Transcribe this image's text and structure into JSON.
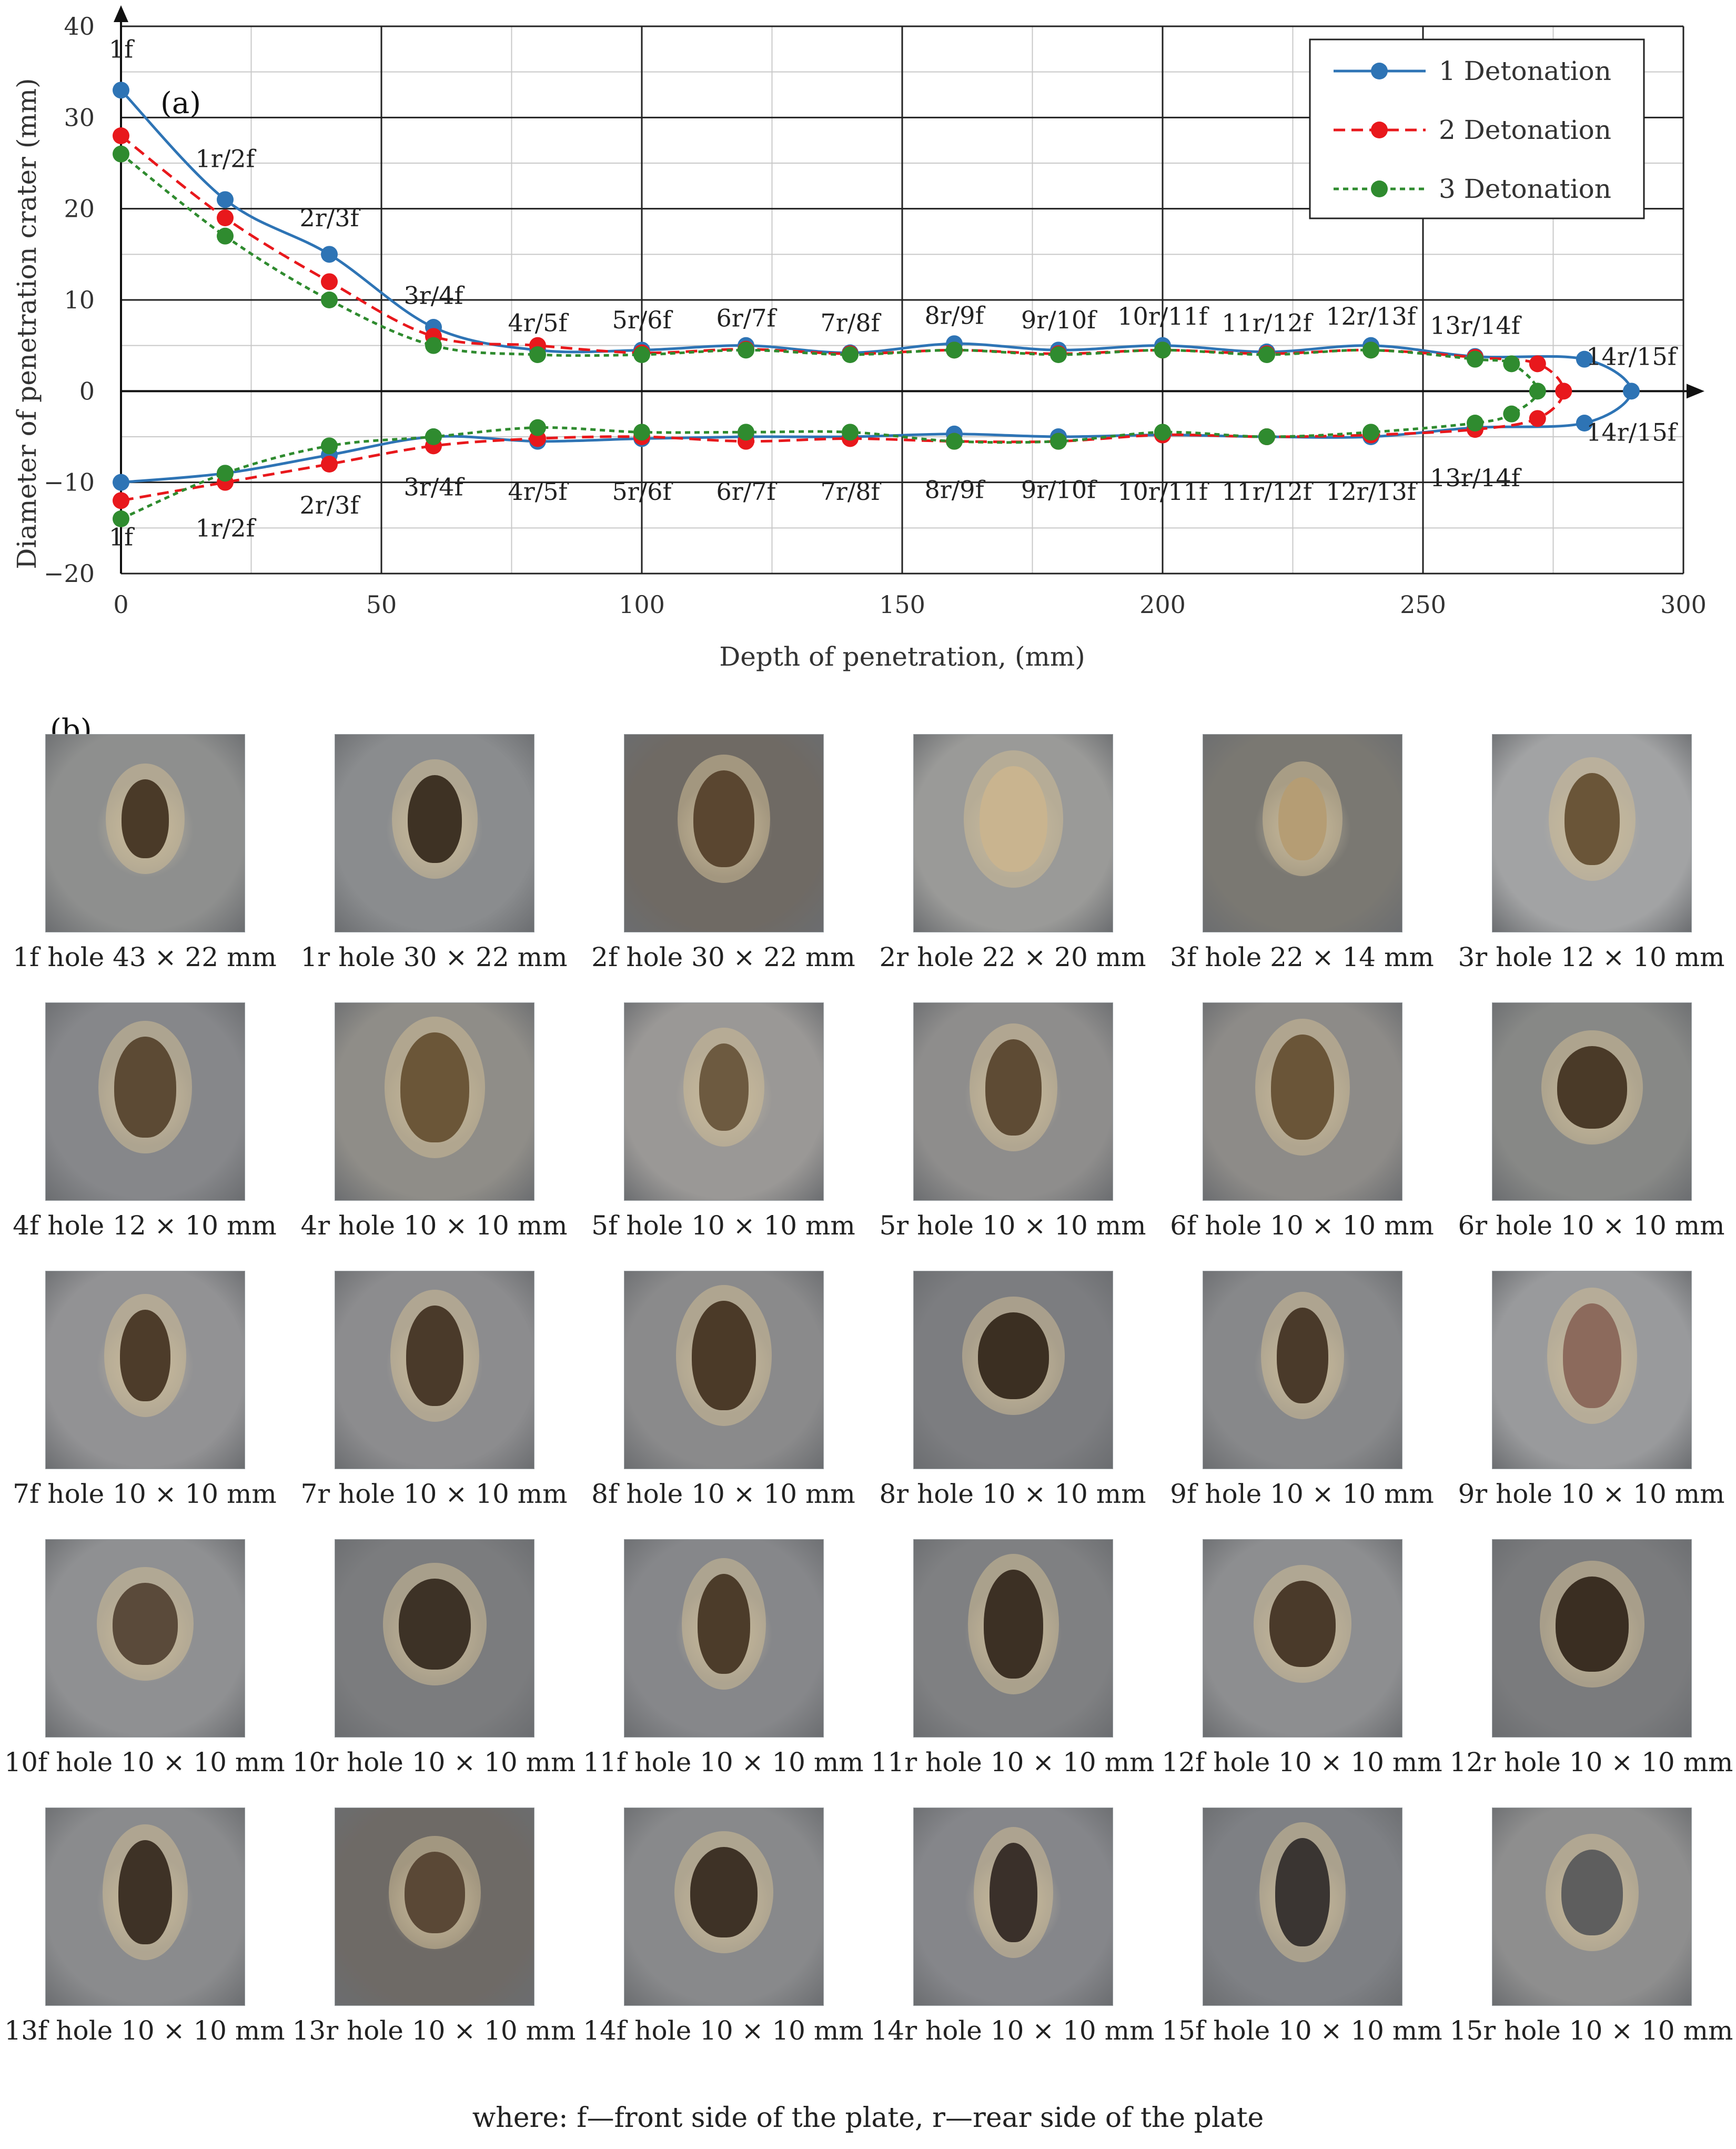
{
  "chart_data": {
    "type": "line",
    "panel_label": "(a)",
    "title": "",
    "xlabel": "Depth of penetration, (mm)",
    "ylabel": "Diameter of penetration crater (mm)",
    "xlim": [
      0,
      300
    ],
    "ylim": [
      -20,
      40
    ],
    "x_ticks": [
      0,
      50,
      100,
      150,
      200,
      250,
      300
    ],
    "y_ticks": [
      40,
      30,
      20,
      10,
      0,
      -10,
      -20
    ],
    "y_tick_labels": [
      "40",
      "30",
      "20",
      "10",
      "0",
      "−10",
      "−20"
    ],
    "grid": true,
    "legend_position": "top-right",
    "series": [
      {
        "name": "1 Detonation",
        "color": "#2E74B5",
        "line_style": "solid",
        "upper": [
          [
            0,
            33
          ],
          [
            20,
            21
          ],
          [
            40,
            15
          ],
          [
            60,
            7
          ],
          [
            80,
            4.5
          ],
          [
            100,
            4.5
          ],
          [
            120,
            5
          ],
          [
            140,
            4.2
          ],
          [
            160,
            5.2
          ],
          [
            180,
            4.5
          ],
          [
            200,
            5
          ],
          [
            220,
            4.3
          ],
          [
            240,
            5
          ],
          [
            260,
            3.8
          ],
          [
            281,
            3.5
          ]
        ],
        "lower": [
          [
            0,
            -10
          ],
          [
            20,
            -9
          ],
          [
            40,
            -7
          ],
          [
            60,
            -5
          ],
          [
            80,
            -5.5
          ],
          [
            100,
            -5.2
          ],
          [
            120,
            -5
          ],
          [
            140,
            -5
          ],
          [
            160,
            -4.7
          ],
          [
            180,
            -5
          ],
          [
            200,
            -4.8
          ],
          [
            220,
            -5
          ],
          [
            240,
            -5
          ],
          [
            260,
            -4
          ],
          [
            281,
            -3.5
          ]
        ],
        "tip": [
          290,
          0
        ]
      },
      {
        "name": "2 Detonation",
        "color": "#E8181C",
        "line_style": "dashed",
        "upper": [
          [
            0,
            28
          ],
          [
            20,
            19
          ],
          [
            40,
            12
          ],
          [
            60,
            6
          ],
          [
            80,
            5
          ],
          [
            100,
            4.2
          ],
          [
            120,
            4.6
          ],
          [
            140,
            4.1
          ],
          [
            160,
            4.5
          ],
          [
            180,
            4.1
          ],
          [
            200,
            4.5
          ],
          [
            220,
            4.1
          ],
          [
            240,
            4.5
          ],
          [
            260,
            3.7
          ],
          [
            272,
            3
          ]
        ],
        "lower": [
          [
            0,
            -12
          ],
          [
            20,
            -10
          ],
          [
            40,
            -8
          ],
          [
            60,
            -6
          ],
          [
            80,
            -5.2
          ],
          [
            100,
            -5
          ],
          [
            120,
            -5.5
          ],
          [
            140,
            -5.2
          ],
          [
            160,
            -5.5
          ],
          [
            180,
            -5.5
          ],
          [
            200,
            -4.8
          ],
          [
            220,
            -5
          ],
          [
            240,
            -4.8
          ],
          [
            260,
            -4.2
          ],
          [
            272,
            -3
          ]
        ],
        "tip": [
          277,
          0
        ]
      },
      {
        "name": "3 Detonation",
        "color": "#2F8B2F",
        "line_style": "dotted",
        "upper": [
          [
            0,
            26
          ],
          [
            20,
            17
          ],
          [
            40,
            10
          ],
          [
            60,
            5
          ],
          [
            80,
            4
          ],
          [
            100,
            4
          ],
          [
            120,
            4.5
          ],
          [
            140,
            4
          ],
          [
            160,
            4.5
          ],
          [
            180,
            4
          ],
          [
            200,
            4.5
          ],
          [
            220,
            4
          ],
          [
            240,
            4.5
          ],
          [
            260,
            3.5
          ],
          [
            267,
            3
          ]
        ],
        "lower": [
          [
            0,
            -14
          ],
          [
            20,
            -9
          ],
          [
            40,
            -6
          ],
          [
            60,
            -5
          ],
          [
            80,
            -4
          ],
          [
            100,
            -4.5
          ],
          [
            120,
            -4.5
          ],
          [
            140,
            -4.5
          ],
          [
            160,
            -5.5
          ],
          [
            180,
            -5.5
          ],
          [
            200,
            -4.5
          ],
          [
            220,
            -5
          ],
          [
            240,
            -4.5
          ],
          [
            260,
            -3.5
          ],
          [
            267,
            -2.5
          ]
        ],
        "tip": [
          272,
          0
        ]
      }
    ],
    "upper_labels": [
      {
        "text": "1f",
        "x": 0,
        "y": 37.5
      },
      {
        "text": "1r/2f",
        "x": 20,
        "y": 25.5
      },
      {
        "text": "2r/3f",
        "x": 40,
        "y": 19
      },
      {
        "text": "3r/4f",
        "x": 60,
        "y": 10.5
      },
      {
        "text": "4r/5f",
        "x": 80,
        "y": 7.5
      },
      {
        "text": "5r/6f",
        "x": 100,
        "y": 7.8
      },
      {
        "text": "6r/7f",
        "x": 120,
        "y": 8
      },
      {
        "text": "7r/8f",
        "x": 140,
        "y": 7.5
      },
      {
        "text": "8r/9f",
        "x": 160,
        "y": 8.3
      },
      {
        "text": "9r/10f",
        "x": 180,
        "y": 7.8
      },
      {
        "text": "10r/11f",
        "x": 200,
        "y": 8.2
      },
      {
        "text": "11r/12f",
        "x": 220,
        "y": 7.5
      },
      {
        "text": "12r/13f",
        "x": 240,
        "y": 8.2
      },
      {
        "text": "13r/14f",
        "x": 260,
        "y": 7.2
      },
      {
        "text": "14r/15f",
        "x": 290,
        "y": 3.8
      }
    ],
    "lower_labels": [
      {
        "text": "1f",
        "x": 0,
        "y": -16
      },
      {
        "text": "1r/2f",
        "x": 20,
        "y": -15
      },
      {
        "text": "2r/3f",
        "x": 40,
        "y": -12.5
      },
      {
        "text": "3r/4f",
        "x": 60,
        "y": -10.5
      },
      {
        "text": "4r/5f",
        "x": 80,
        "y": -11
      },
      {
        "text": "5r/6f",
        "x": 100,
        "y": -11
      },
      {
        "text": "6r/7f",
        "x": 120,
        "y": -11
      },
      {
        "text": "7r/8f",
        "x": 140,
        "y": -11
      },
      {
        "text": "8r/9f",
        "x": 160,
        "y": -10.8
      },
      {
        "text": "9r/10f",
        "x": 180,
        "y": -10.8
      },
      {
        "text": "10r/11f",
        "x": 200,
        "y": -11
      },
      {
        "text": "11r/12f",
        "x": 220,
        "y": -11
      },
      {
        "text": "12r/13f",
        "x": 240,
        "y": -11
      },
      {
        "text": "13r/14f",
        "x": 260,
        "y": -9.5
      },
      {
        "text": "14r/15f",
        "x": 290,
        "y": -4.5
      }
    ]
  },
  "panel_b": {
    "label": "(b)",
    "photos": [
      {
        "caption": "1f hole 43 × 22 mm",
        "tone": "#8e8f8e",
        "hole": "#4a3a28"
      },
      {
        "caption": "1r hole 30 × 22 mm",
        "tone": "#8a8c8e",
        "hole": "#3e3224"
      },
      {
        "caption": "2f hole 30 × 22 mm",
        "tone": "#6f6a64",
        "hole": "#5a4630"
      },
      {
        "caption": "2r hole 22 × 20 mm",
        "tone": "#9a9a98",
        "hole": "#c9b48f"
      },
      {
        "caption": "3f hole 22 × 14 mm",
        "tone": "#7a7872",
        "hole": "#b59d74"
      },
      {
        "caption": "3r hole 12 × 10 mm",
        "tone": "#a2a3a4",
        "hole": "#6a5538"
      },
      {
        "caption": "4f hole 12 × 10 mm",
        "tone": "#86878a",
        "hole": "#5c4a34"
      },
      {
        "caption": "4r hole 10 × 10 mm",
        "tone": "#8f8d88",
        "hole": "#6b5638"
      },
      {
        "caption": "5f hole 10 × 10 mm",
        "tone": "#9a9896",
        "hole": "#6d5a40"
      },
      {
        "caption": "5r hole 10 × 10 mm",
        "tone": "#8e8d8c",
        "hole": "#5e4b34"
      },
      {
        "caption": "6f hole 10 × 10 mm",
        "tone": "#8d8b88",
        "hole": "#6a5538"
      },
      {
        "caption": "6r hole 10 × 10 mm",
        "tone": "#878886",
        "hole": "#4a3a28"
      },
      {
        "caption": "7f hole 10 × 10 mm",
        "tone": "#929294",
        "hole": "#4d3c2a"
      },
      {
        "caption": "7r hole 10 × 10 mm",
        "tone": "#8c8c8e",
        "hole": "#4a3a2a"
      },
      {
        "caption": "8f hole 10 × 10 mm",
        "tone": "#8a8a8b",
        "hole": "#4b3a28"
      },
      {
        "caption": "8r hole 10 × 10 mm",
        "tone": "#7c7d80",
        "hole": "#3b2f22"
      },
      {
        "caption": "9f hole 10 × 10 mm",
        "tone": "#87888a",
        "hole": "#4a3a2a"
      },
      {
        "caption": "9r hole 10 × 10 mm",
        "tone": "#999a9c",
        "hole": "#8c6a5c"
      },
      {
        "caption": "10f hole 10 × 10 mm",
        "tone": "#8f9092",
        "hole": "#5a4a3a"
      },
      {
        "caption": "10r hole 10 × 10 mm",
        "tone": "#7b7c7e",
        "hole": "#3d3226"
      },
      {
        "caption": "11f hole 10 × 10 mm",
        "tone": "#86878a",
        "hole": "#4c3c2a"
      },
      {
        "caption": "11r hole 10 × 10 mm",
        "tone": "#7f8082",
        "hole": "#3c3024"
      },
      {
        "caption": "12f hole 10 × 10 mm",
        "tone": "#8d8e90",
        "hole": "#4a3a2a"
      },
      {
        "caption": "12r hole 10 × 10 mm",
        "tone": "#7a7b7d",
        "hole": "#3a2e22"
      },
      {
        "caption": "13f hole 10 × 10 mm",
        "tone": "#8a8b8d",
        "hole": "#3e3226"
      },
      {
        "caption": "13r hole 10 × 10 mm",
        "tone": "#6e6a66",
        "hole": "#5a4836"
      },
      {
        "caption": "14f hole 10 × 10 mm",
        "tone": "#88898b",
        "hole": "#3e3226"
      },
      {
        "caption": "14r hole 10 × 10 mm",
        "tone": "#85868a",
        "hole": "#3a302a"
      },
      {
        "caption": "15f hole 10 × 10 mm",
        "tone": "#7e8084",
        "hole": "#3a3532"
      },
      {
        "caption": "15r hole 10 × 10 mm",
        "tone": "#8e8e8e",
        "hole": "#5e5e5e"
      }
    ]
  },
  "footnote": "where: f—front side of the plate, r—rear side of the plate"
}
